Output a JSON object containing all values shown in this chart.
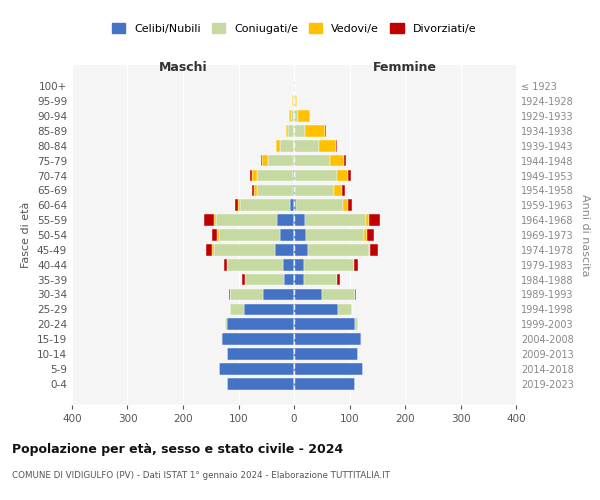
{
  "age_groups": [
    "0-4",
    "5-9",
    "10-14",
    "15-19",
    "20-24",
    "25-29",
    "30-34",
    "35-39",
    "40-44",
    "45-49",
    "50-54",
    "55-59",
    "60-64",
    "65-69",
    "70-74",
    "75-79",
    "80-84",
    "85-89",
    "90-94",
    "95-99",
    "100+"
  ],
  "birth_years": [
    "2019-2023",
    "2014-2018",
    "2009-2013",
    "2004-2008",
    "1999-2003",
    "1994-1998",
    "1989-1993",
    "1984-1988",
    "1979-1983",
    "1974-1978",
    "1969-1973",
    "1964-1968",
    "1959-1963",
    "1954-1958",
    "1949-1953",
    "1944-1948",
    "1939-1943",
    "1934-1938",
    "1929-1933",
    "1924-1928",
    "≤ 1923"
  ],
  "maschi": {
    "celibi": [
      120,
      135,
      120,
      130,
      120,
      90,
      55,
      18,
      20,
      35,
      25,
      30,
      8,
      2,
      2,
      2,
      0,
      0,
      0,
      0,
      0
    ],
    "coniugati": [
      0,
      0,
      0,
      2,
      5,
      25,
      60,
      70,
      100,
      110,
      110,
      110,
      90,
      65,
      65,
      45,
      25,
      10,
      5,
      2,
      1
    ],
    "vedovi": [
      0,
      0,
      0,
      0,
      0,
      0,
      0,
      0,
      1,
      2,
      3,
      5,
      3,
      5,
      8,
      10,
      8,
      5,
      4,
      1,
      0
    ],
    "divorziati": [
      0,
      0,
      0,
      0,
      0,
      0,
      2,
      5,
      6,
      12,
      10,
      18,
      6,
      4,
      4,
      2,
      0,
      0,
      0,
      0,
      0
    ]
  },
  "femmine": {
    "celibi": [
      110,
      125,
      115,
      120,
      110,
      80,
      50,
      18,
      18,
      25,
      22,
      20,
      4,
      2,
      2,
      0,
      0,
      0,
      0,
      0,
      0
    ],
    "coniugati": [
      0,
      0,
      0,
      2,
      5,
      25,
      60,
      60,
      90,
      110,
      105,
      110,
      85,
      70,
      75,
      65,
      45,
      20,
      8,
      3,
      1
    ],
    "vedovi": [
      0,
      0,
      0,
      0,
      0,
      0,
      0,
      0,
      1,
      2,
      5,
      5,
      8,
      15,
      20,
      25,
      30,
      35,
      20,
      3,
      1
    ],
    "divorziati": [
      0,
      0,
      0,
      0,
      0,
      0,
      2,
      5,
      6,
      15,
      12,
      20,
      8,
      4,
      5,
      4,
      2,
      2,
      1,
      0,
      0
    ]
  },
  "colors": {
    "celibi": "#4472c4",
    "coniugati": "#c5d9a0",
    "vedovi": "#ffc000",
    "divorziati": "#c00000"
  },
  "legend_labels": [
    "Celibi/Nubili",
    "Coniugati/e",
    "Vedovi/e",
    "Divorziati/e"
  ],
  "title": "Popolazione per età, sesso e stato civile - 2024",
  "subtitle": "COMUNE DI VIDIGULFO (PV) - Dati ISTAT 1° gennaio 2024 - Elaborazione TUTTITALIA.IT",
  "xlabel_left": "Maschi",
  "xlabel_right": "Femmine",
  "ylabel_left": "Fasce di età",
  "ylabel_right": "Anni di nascita",
  "xlim": 400,
  "bg_color": "#f5f5f5",
  "fig_color": "#ffffff"
}
